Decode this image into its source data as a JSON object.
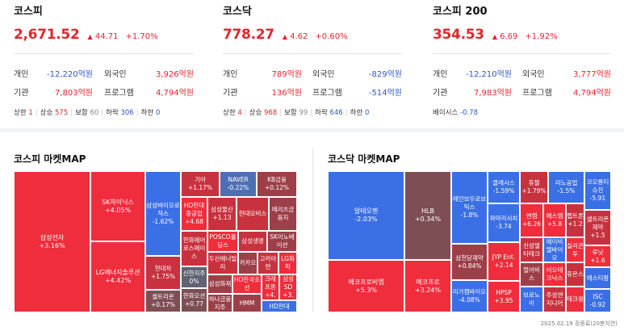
{
  "indices": [
    {
      "name": "코스피",
      "price": "2,671.52",
      "arrow": "▲",
      "change": "44.71",
      "pct": "+1.70%",
      "investors": [
        {
          "label": "개인",
          "value": "-12,220억원",
          "tone": "down"
        },
        {
          "label": "외국인",
          "value": "3,926억원",
          "tone": "up"
        },
        {
          "label": "기관",
          "value": "7,803억원",
          "tone": "up"
        },
        {
          "label": "프로그램",
          "value": "4,794억원",
          "tone": "up"
        }
      ],
      "breadth": {
        "upper_label": "상한",
        "upper": "1",
        "up_label": "상승",
        "up": "575",
        "flat_label": "보합",
        "flat": "60",
        "down_label": "하락",
        "down": "306",
        "lower_label": "하한",
        "lower": "0"
      }
    },
    {
      "name": "코스닥",
      "price": "778.27",
      "arrow": "▲",
      "change": "4.62",
      "pct": "+0.60%",
      "investors": [
        {
          "label": "개인",
          "value": "789억원",
          "tone": "up"
        },
        {
          "label": "외국인",
          "value": "-829억원",
          "tone": "down"
        },
        {
          "label": "기관",
          "value": "136억원",
          "tone": "up"
        },
        {
          "label": "프로그램",
          "value": "-514억원",
          "tone": "down"
        }
      ],
      "breadth": {
        "upper_label": "상한",
        "upper": "4",
        "up_label": "상승",
        "up": "968",
        "flat_label": "보합",
        "flat": "99",
        "down_label": "하락",
        "down": "646",
        "lower_label": "하한",
        "lower": "0"
      }
    },
    {
      "name": "코스피 200",
      "price": "354.53",
      "arrow": "▲",
      "change": "6.69",
      "pct": "+1.92%",
      "investors": [
        {
          "label": "개인",
          "value": "-12,210억원",
          "tone": "down"
        },
        {
          "label": "외국인",
          "value": "3,777억원",
          "tone": "up"
        },
        {
          "label": "기관",
          "value": "7,983억원",
          "tone": "up"
        },
        {
          "label": "프로그램",
          "value": "4,794억원",
          "tone": "up"
        }
      ],
      "basis": {
        "label": "베이시스",
        "value": "-0.78"
      }
    }
  ],
  "colors": {
    "up": "#e8232b",
    "down": "#2f57c7",
    "tile_up_strong": "#ef2d3c",
    "tile_up": "#c8323e",
    "tile_up_weak": "#9d3f48",
    "tile_flat": "#5f6374",
    "tile_down": "#3b6fe5"
  },
  "maps": [
    {
      "title": "코스피 마켓MAP",
      "tiles": [
        {
          "name": "삼성전자",
          "value": "+3.16%",
          "tone": "r1"
        },
        {
          "name": "SK하이닉스",
          "value": "+4.05%",
          "tone": "r1"
        },
        {
          "name": "LG에너지솔루션",
          "value": "+4.42%",
          "tone": "r1"
        },
        {
          "name": "삼성바이오로직스",
          "value": "-1.62%",
          "tone": "b1"
        },
        {
          "name": "현대차",
          "value": "+1.75%",
          "tone": "r2"
        },
        {
          "name": "셀트리온",
          "value": "+0.17%",
          "tone": "r4"
        },
        {
          "name": "기아",
          "value": "+1.17%",
          "tone": "r2"
        },
        {
          "name": "NAVER",
          "value": "-0.22%",
          "tone": "b2"
        },
        {
          "name": "KB금융",
          "value": "+0.12%",
          "tone": "r3"
        },
        {
          "name": "HD현대중공업",
          "value": "+4.68",
          "tone": "r1"
        },
        {
          "name": "삼성물산",
          "value": "+1.13",
          "tone": "r2"
        },
        {
          "name": "현대모비스",
          "value": "",
          "tone": "r2"
        },
        {
          "name": "메리츠금융지",
          "value": "",
          "tone": "r3"
        },
        {
          "name": "한화에어로스페이스",
          "value": "",
          "tone": "r2"
        },
        {
          "name": "POSCO홀딩스",
          "value": "",
          "tone": "r1"
        },
        {
          "name": "삼성생명",
          "value": "",
          "tone": "r2"
        },
        {
          "name": "SK이노베이션",
          "value": "",
          "tone": "r3"
        },
        {
          "name": "신한지주",
          "value": "0%",
          "tone": "n"
        },
        {
          "name": "두산에너빌리",
          "value": "",
          "tone": "r2"
        },
        {
          "name": "카카오",
          "value": "",
          "tone": "r3"
        },
        {
          "name": "고려아연",
          "value": "",
          "tone": "r2"
        },
        {
          "name": "LG화학",
          "value": "",
          "tone": "r1"
        },
        {
          "name": "삼성화재",
          "value": "",
          "tone": "r3"
        },
        {
          "name": "HD한국조선",
          "value": "",
          "tone": "r1"
        },
        {
          "name": "크래프톤",
          "value": "+4.",
          "tone": "r1"
        },
        {
          "name": "삼성SD",
          "value": "+3.",
          "tone": "r1"
        },
        {
          "name": "한화오션",
          "value": "+0.77",
          "tone": "r4"
        },
        {
          "name": "하나금융지주",
          "value": "",
          "tone": "r3"
        },
        {
          "name": "HMM",
          "value": "",
          "tone": "r3"
        },
        {
          "name": "HD현대",
          "value": "",
          "tone": "b1"
        }
      ]
    },
    {
      "title": "코스닥 마켓MAP",
      "tiles": [
        {
          "name": "알테오젠",
          "value": "-2.03%",
          "tone": "b1"
        },
        {
          "name": "에코프로비엠",
          "value": "+5.3%",
          "tone": "r1"
        },
        {
          "name": "HLB",
          "value": "+0.34%",
          "tone": "r4"
        },
        {
          "name": "에코프로",
          "value": "+3.24%",
          "tone": "r1"
        },
        {
          "name": "레인보우로보틱스",
          "value": "-1.8%",
          "tone": "b1"
        },
        {
          "name": "삼천당제약",
          "value": "+0.84%",
          "tone": "r3"
        },
        {
          "name": "리가켐바이오",
          "value": "-4.08%",
          "tone": "b1"
        },
        {
          "name": "클래시스",
          "value": "-1.59%",
          "tone": "b1"
        },
        {
          "name": "휴젤",
          "value": "+1.79%",
          "tone": "r2"
        },
        {
          "name": "리노공업",
          "value": "-1.5%",
          "tone": "b1"
        },
        {
          "name": "코오롱티슈진",
          "value": "-5.91",
          "tone": "b1"
        },
        {
          "name": "파마리서치",
          "value": "-3.74",
          "tone": "b1"
        },
        {
          "name": "엔켐",
          "value": "+6.26",
          "tone": "r1"
        },
        {
          "name": "에스엠",
          "value": "+5.8",
          "tone": "r1"
        },
        {
          "name": "펩트론",
          "value": "+1.2",
          "tone": "r2"
        },
        {
          "name": "셀트리온제약",
          "value": "+1.5",
          "tone": "r2"
        },
        {
          "name": "JYP Ent.",
          "value": "+2.14",
          "tone": "r1"
        },
        {
          "name": "신성델타테크",
          "value": "",
          "tone": "r2"
        },
        {
          "name": "에이비엘바이오",
          "value": "",
          "tone": "b1"
        },
        {
          "name": "실리콘투",
          "value": "",
          "tone": "r1"
        },
        {
          "name": "휴온스",
          "value": "",
          "tone": "r2"
        },
        {
          "name": "루닛",
          "value": "+1.6",
          "tone": "r1"
        },
        {
          "name": "펄어비스",
          "value": "",
          "tone": "r3"
        },
        {
          "name": "이오테크닉스",
          "value": "",
          "tone": "r1"
        },
        {
          "name": "대주전자",
          "value": "",
          "tone": "r1"
        },
        {
          "name": "에스티팜",
          "value": "",
          "tone": "b1"
        },
        {
          "name": "HPSP",
          "value": "+3.95",
          "tone": "r1"
        },
        {
          "name": "보로노이",
          "value": "",
          "tone": "b1"
        },
        {
          "name": "주성엔지니어",
          "value": "",
          "tone": "r2"
        },
        {
          "name": "테크윙",
          "value": "",
          "tone": "r1"
        },
        {
          "name": "ISC",
          "value": "-0.92",
          "tone": "b1"
        }
      ]
    }
  ],
  "footnote": "2025.02.19 장종료(20분지연)"
}
